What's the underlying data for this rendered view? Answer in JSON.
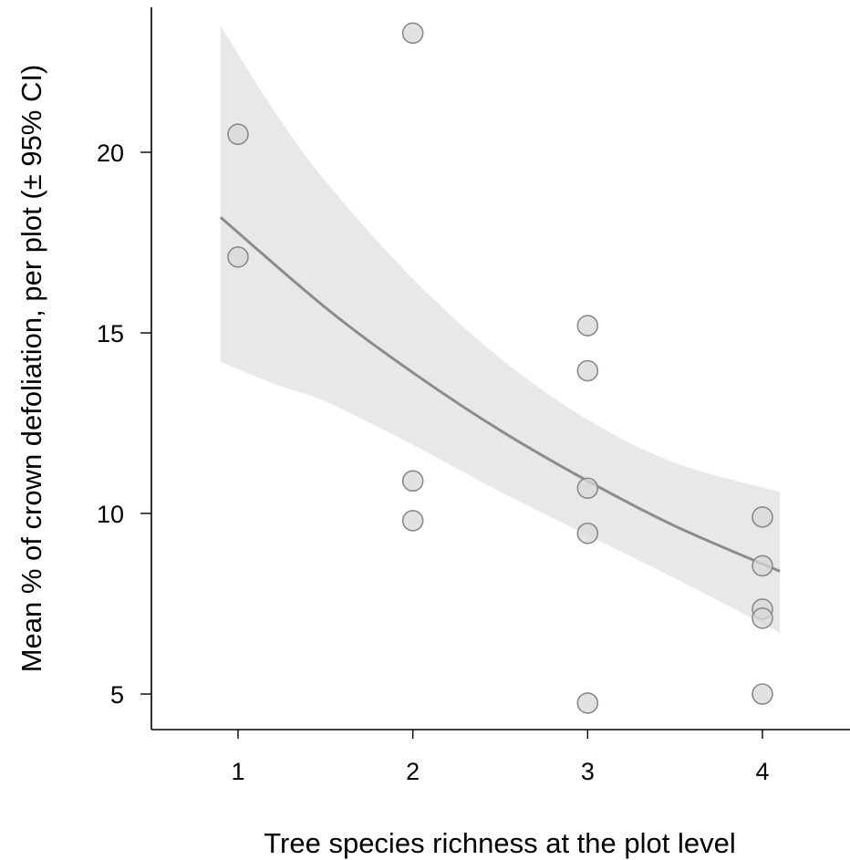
{
  "chart_data": {
    "type": "scatter",
    "title": "",
    "xlabel": "Tree species richness at the plot level",
    "ylabel": "Mean % of crown defoliation, per plot (± 95% CI)",
    "xlim": [
      0.5,
      4.5
    ],
    "ylim": [
      4,
      24
    ],
    "x_ticks": [
      1,
      2,
      3,
      4
    ],
    "y_ticks": [
      5,
      10,
      15,
      20
    ],
    "grid": false,
    "points": [
      {
        "x": 1,
        "y": 20.5
      },
      {
        "x": 1,
        "y": 17.1
      },
      {
        "x": 2,
        "y": 23.3
      },
      {
        "x": 2,
        "y": 10.9
      },
      {
        "x": 2,
        "y": 9.8
      },
      {
        "x": 3,
        "y": 15.2
      },
      {
        "x": 3,
        "y": 13.95
      },
      {
        "x": 3,
        "y": 10.7
      },
      {
        "x": 3,
        "y": 9.45
      },
      {
        "x": 3,
        "y": 4.75
      },
      {
        "x": 4,
        "y": 9.9
      },
      {
        "x": 4,
        "y": 8.55
      },
      {
        "x": 4,
        "y": 7.35
      },
      {
        "x": 4,
        "y": 7.1
      },
      {
        "x": 4,
        "y": 5.0
      }
    ],
    "fit": {
      "x": [
        0.9,
        1.5,
        2.0,
        2.5,
        3.0,
        3.5,
        4.1
      ],
      "y": [
        18.2,
        15.7,
        13.9,
        12.3,
        10.9,
        9.65,
        8.4
      ]
    },
    "ci": {
      "x": [
        0.9,
        1.2,
        1.5,
        2.0,
        2.5,
        3.0,
        3.5,
        4.1
      ],
      "upper": [
        23.5,
        21.2,
        19.2,
        16.5,
        14.3,
        12.6,
        11.4,
        10.6
      ],
      "lower": [
        14.2,
        13.6,
        13.1,
        11.9,
        10.6,
        9.4,
        8.2,
        6.7
      ]
    },
    "colors": {
      "ci_band": "#e8e8e8",
      "fit_line": "#8c8c8c",
      "point_fill": "#d8d8d8",
      "point_stroke": "#8a8a8a"
    }
  }
}
